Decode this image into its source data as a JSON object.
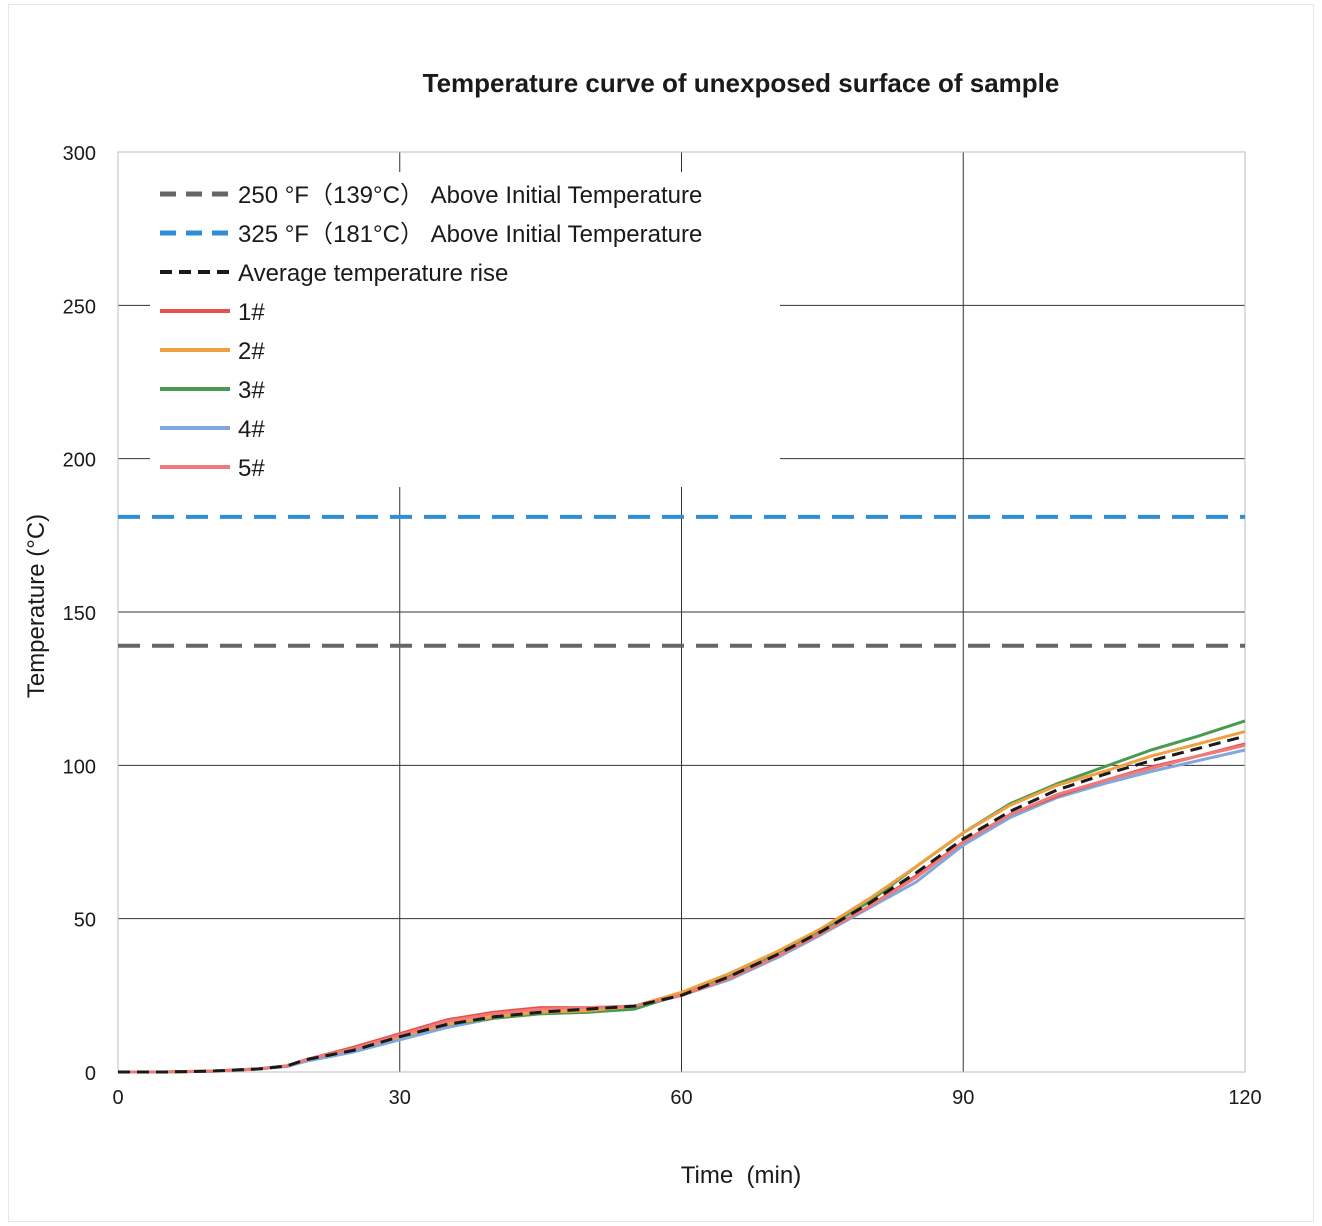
{
  "chart_data": {
    "type": "line",
    "title": "Temperature curve of unexposed surface of sample",
    "xlabel": "Time  (min)",
    "ylabel": "Temperature (°C)",
    "xlim": [
      0,
      120
    ],
    "ylim": [
      0,
      300
    ],
    "x_ticks": [
      "0",
      "30",
      "60",
      "90",
      "120"
    ],
    "y_ticks": [
      "0",
      "50",
      "100",
      "150",
      "200",
      "250",
      "300"
    ],
    "grid": true,
    "legend_position": "top-left",
    "x": [
      0,
      5,
      10,
      15,
      18,
      20,
      25,
      30,
      35,
      40,
      45,
      50,
      55,
      60,
      65,
      70,
      75,
      80,
      85,
      90,
      95,
      100,
      105,
      110,
      115,
      120
    ],
    "series": [
      {
        "name": "250 °F（139°C） Above Initial Temperature",
        "color": "#666666",
        "style": "dashed",
        "width": 4,
        "values": [
          139,
          139,
          139,
          139,
          139,
          139,
          139,
          139,
          139,
          139,
          139,
          139,
          139,
          139,
          139,
          139,
          139,
          139,
          139,
          139,
          139,
          139,
          139,
          139,
          139,
          139
        ]
      },
      {
        "name": "325 °F（181°C） Above Initial Temperature",
        "color": "#2e8fd6",
        "style": "dashed",
        "width": 4,
        "values": [
          181,
          181,
          181,
          181,
          181,
          181,
          181,
          181,
          181,
          181,
          181,
          181,
          181,
          181,
          181,
          181,
          181,
          181,
          181,
          181,
          181,
          181,
          181,
          181,
          181,
          181
        ]
      },
      {
        "name": "Average temperature rise",
        "color": "#1a1a1a",
        "style": "dashed",
        "width": 3,
        "values": [
          0,
          0,
          0.3,
          1,
          2,
          4,
          7,
          11.5,
          15.5,
          18,
          19.5,
          20.5,
          21.5,
          25,
          31,
          38,
          46,
          55,
          65,
          76,
          85,
          92,
          97,
          101.5,
          105.5,
          109.5
        ]
      },
      {
        "name": "1#",
        "color": "#e8504a",
        "style": "solid",
        "width": 3,
        "values": [
          0,
          0,
          0.3,
          1,
          2,
          4,
          8,
          12.5,
          17,
          19.5,
          21,
          21,
          21.5,
          25,
          30.5,
          37.5,
          45.5,
          54,
          64,
          75,
          84,
          90,
          95,
          99.5,
          103,
          107
        ]
      },
      {
        "name": "2#",
        "color": "#f0a040",
        "style": "solid",
        "width": 3,
        "values": [
          0,
          0,
          0.3,
          1,
          2,
          4,
          7.5,
          11.5,
          15.5,
          18,
          19.5,
          20,
          21.5,
          26,
          32,
          39,
          47,
          56.5,
          67,
          78,
          87,
          93.5,
          98,
          103,
          107,
          111
        ]
      },
      {
        "name": "3#",
        "color": "#4a9a52",
        "style": "solid",
        "width": 3,
        "values": [
          0,
          0,
          0.3,
          1,
          2,
          4,
          7.5,
          11.5,
          15.5,
          17.5,
          19,
          19.5,
          20.5,
          25.5,
          31.5,
          38.5,
          46.5,
          55.5,
          67,
          78,
          87.5,
          94,
          99.5,
          105,
          109.5,
          114.5
        ]
      },
      {
        "name": "4#",
        "color": "#7fa8dc",
        "style": "solid",
        "width": 3,
        "values": [
          0,
          0,
          0.3,
          1,
          1.8,
          3.5,
          6.5,
          10.5,
          14.5,
          17.5,
          19,
          19.5,
          21,
          25,
          30,
          37,
          45,
          53.5,
          62,
          74,
          83,
          89.5,
          94,
          98,
          101.5,
          105
        ]
      },
      {
        "name": "5#",
        "color": "#f07a7a",
        "style": "solid",
        "width": 3,
        "values": [
          0,
          0,
          0.3,
          1,
          2,
          4,
          7.5,
          12,
          16.5,
          19,
          20.5,
          21,
          21.5,
          25,
          30.5,
          37.5,
          45.5,
          54,
          63.5,
          75,
          84,
          90.5,
          95,
          99,
          103,
          106.5
        ]
      }
    ]
  }
}
